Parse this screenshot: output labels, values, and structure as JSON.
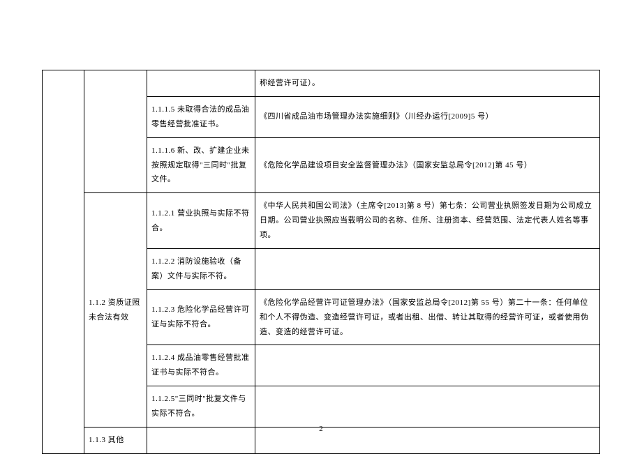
{
  "table": {
    "rows": [
      {
        "c1": "",
        "c2": "",
        "c3": "",
        "c4": "称经营许可证）。"
      },
      {
        "c3": "1.1.1.5 未取得合法的成品油零售经营批准证书。",
        "c4": "《四川省成品油市场管理办法实施细则》（川经办运行[2009]5 号）"
      },
      {
        "c3": "1.1.1.6 新、改、扩建企业未按照规定取得\"三同时\"批复文件。",
        "c4": "《危险化学品建设项目安全监督管理办法》（国家安监总局令[2012]第 45 号）"
      },
      {
        "c2": "1.1.2 资质证照未合法有效",
        "c3": "1.1.2.1 营业执照与实际不符合。",
        "c4": "《中华人民共和国公司法》（主席令[2013]第 8 号）第七条：公司营业执照签发日期为公司成立日期。公司营业执照应当载明公司的名称、住所、注册资本、经营范围、法定代表人姓名等事项。"
      },
      {
        "c3": "1.1.2.2 消防设施验收（备案）文件与实际不符。",
        "c4": ""
      },
      {
        "c3": "1.1.2.3 危险化学品经营许可证与实际不符合。",
        "c4": "《危险化学品经营许可证管理办法》（国家安监总局令[2012]第 55 号）第二十一条：任何单位和个人不得伪造、变造经营许可证，或者出租、出借、转让其取得的经营许可证，或者使用伪造、变造的经营许可证。"
      },
      {
        "c3": "1.1.2.4 成品油零售经营批准证书与实际不符合。",
        "c4": ""
      },
      {
        "c3": "1.1.2.5\"三同时\"批复文件与实际不符合。",
        "c4": ""
      },
      {
        "c2": "1.1.3 其他",
        "c3": "",
        "c4": ""
      }
    ]
  },
  "page_number": "2",
  "styling": {
    "font_family": "SimSun",
    "font_size_pt": 11,
    "border_color": "#000000",
    "background_color": "#ffffff",
    "text_color": "#000000",
    "line_height": 1.9
  }
}
